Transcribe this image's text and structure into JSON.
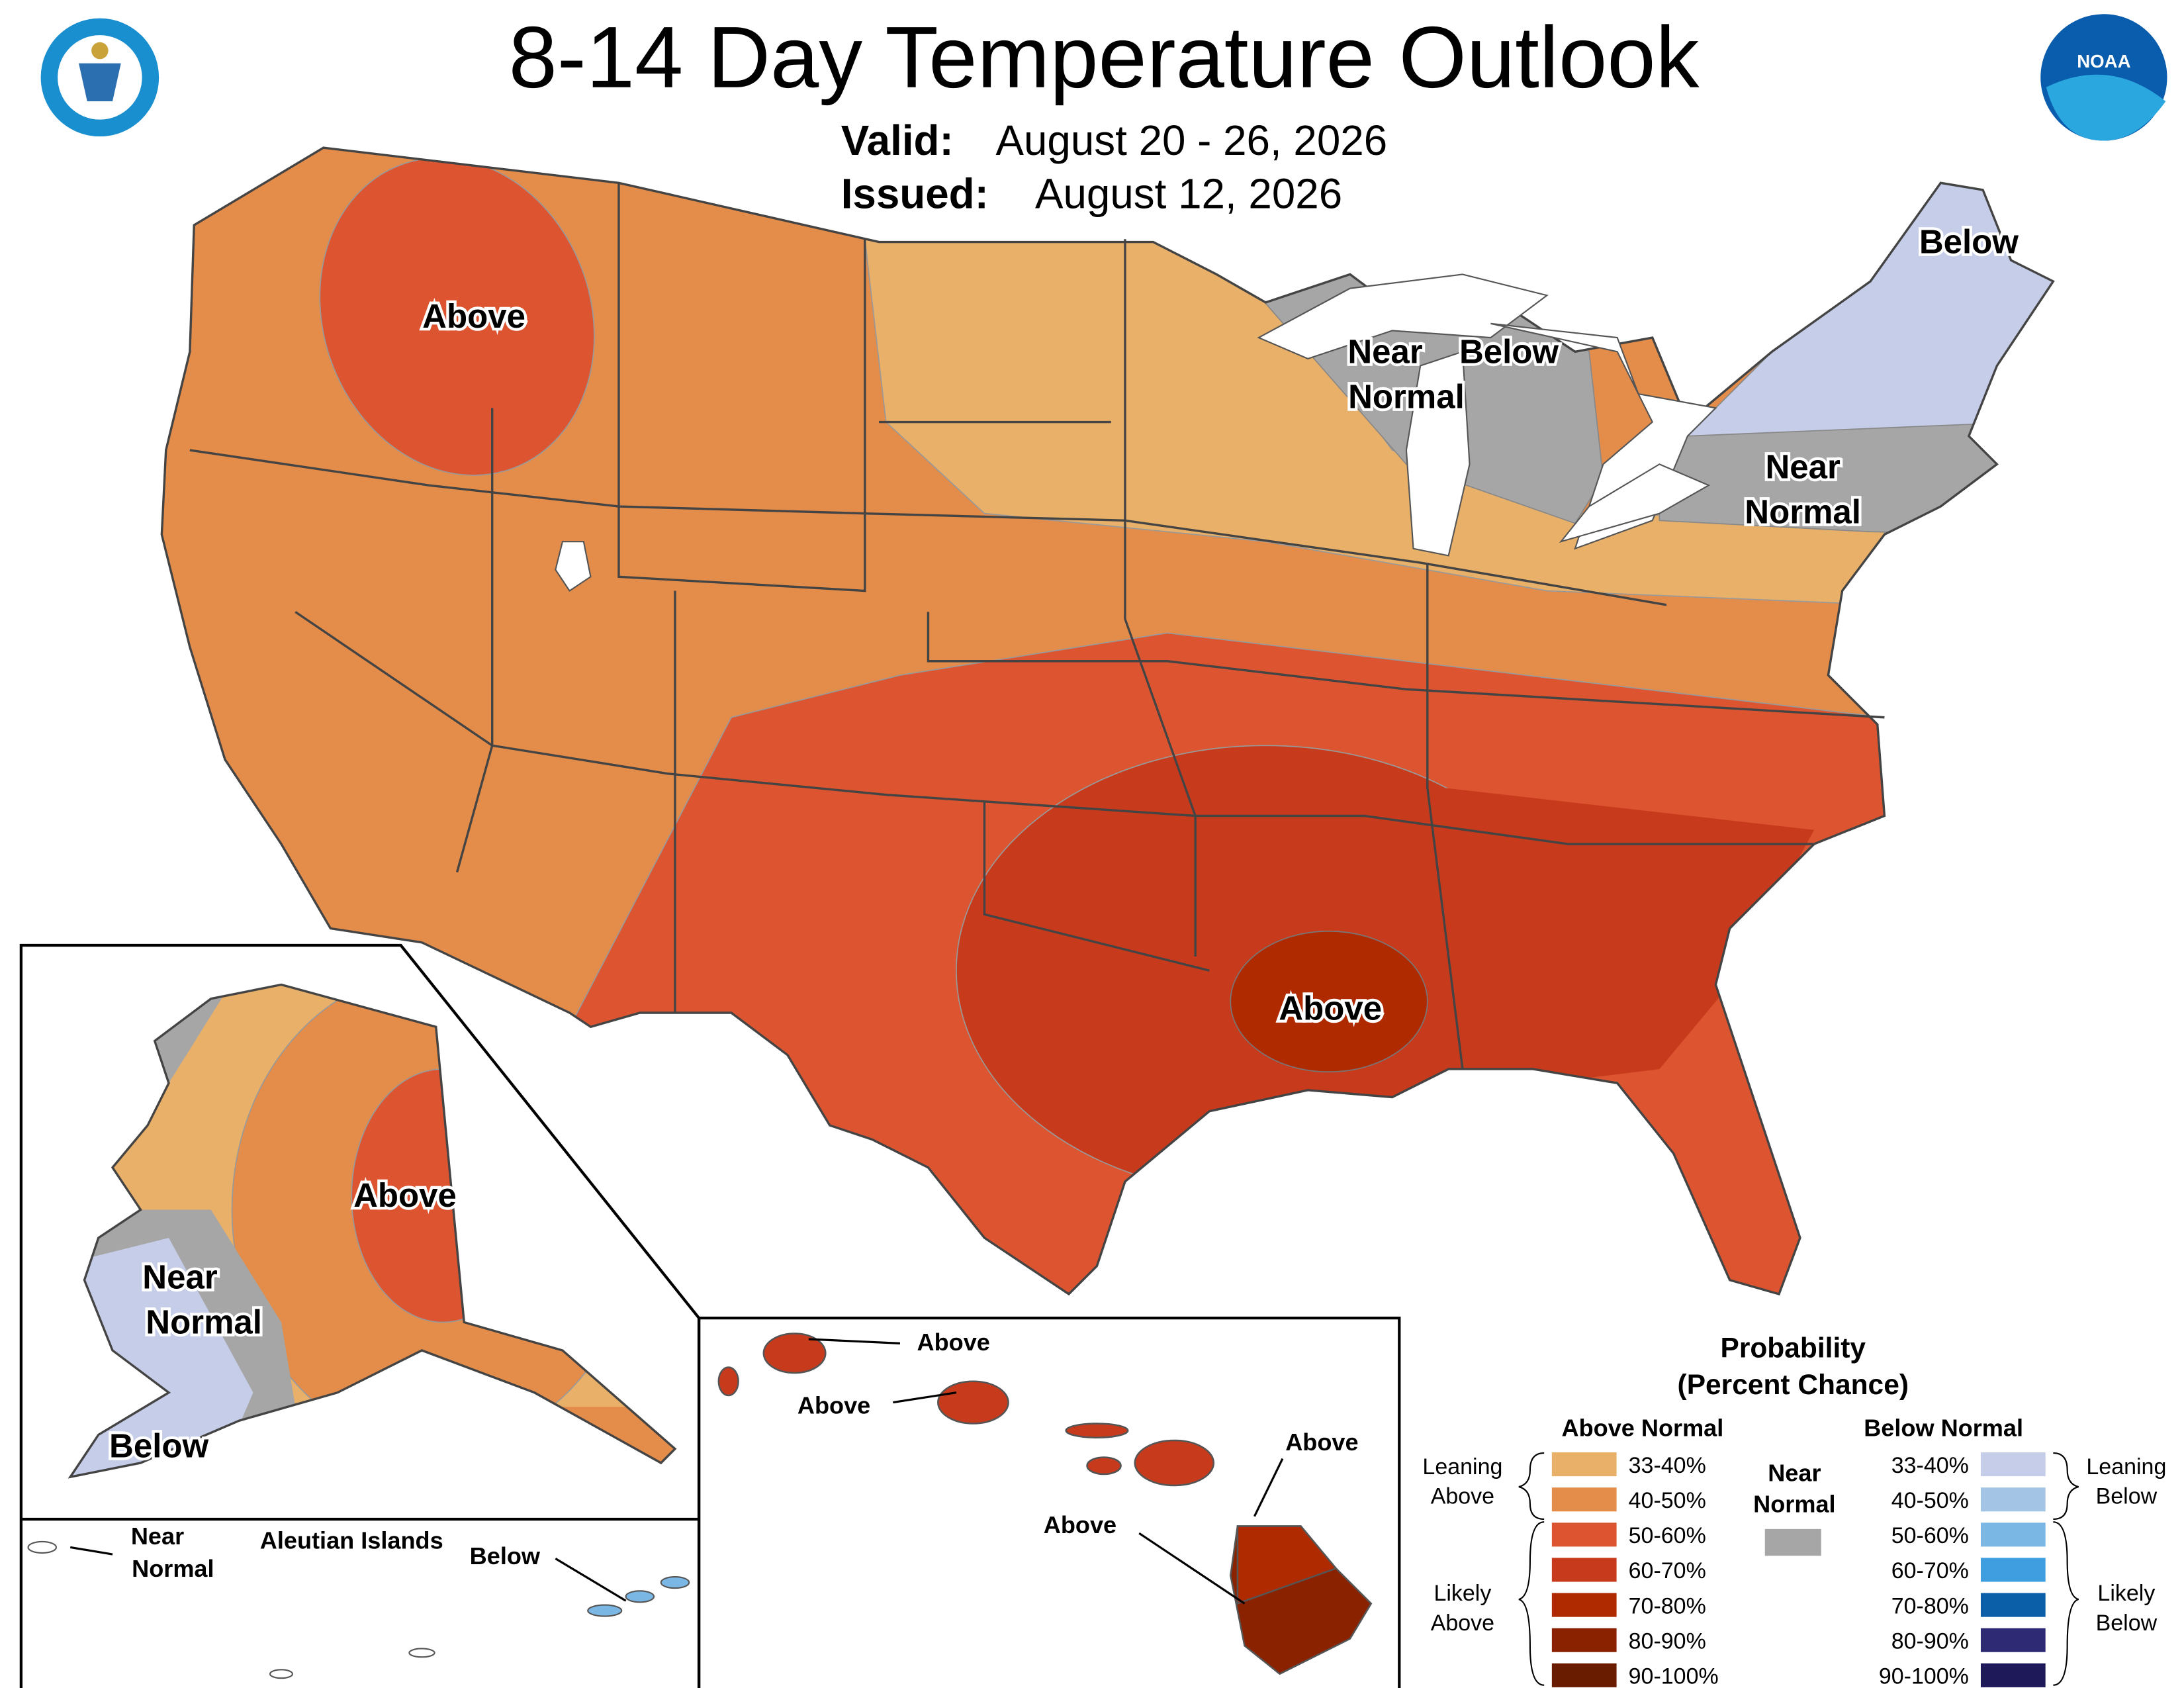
{
  "header": {
    "title": "8-14 Day Temperature Outlook",
    "valid_label": "Valid:",
    "valid": "August 20 - 26, 2026",
    "issued_label": "Issued:",
    "issued": "August 12, 2026",
    "noaa": "NOAA"
  },
  "conus_labels": {
    "northwest": "Above",
    "great_lakes_near": [
      "Near",
      "Normal"
    ],
    "great_lakes_below": "Below",
    "maine": "Below",
    "northeast": [
      "Near",
      "Normal"
    ],
    "south": "Above"
  },
  "alaska_labels": {
    "east": "Above",
    "west": [
      "Near",
      "Normal"
    ],
    "southwest": "Below"
  },
  "aleutian_labels": {
    "title": "Aleutian Islands",
    "west": [
      "Near",
      "Normal"
    ],
    "east": "Below"
  },
  "hawaii_labels": {
    "kauai": "Above",
    "oahu": "Above",
    "maui": "Above",
    "big_island": "Above"
  },
  "legend": {
    "title": "Probability",
    "subtitle": "(Percent Chance)",
    "above_header": "Above Normal",
    "below_header": "Below Normal",
    "near_header": [
      "Near",
      "Normal"
    ],
    "near_color": "#a6a6a6",
    "above_bins": [
      "33-40%",
      "40-50%",
      "50-60%",
      "60-70%",
      "70-80%",
      "80-90%",
      "90-100%"
    ],
    "above_colors": [
      "#e8b068",
      "#e48c4a",
      "#dc5530",
      "#c83a1c",
      "#b02a00",
      "#8a2200",
      "#6a1c00"
    ],
    "below_bins": [
      "33-40%",
      "40-50%",
      "50-60%",
      "60-70%",
      "70-80%",
      "80-90%",
      "90-100%"
    ],
    "below_colors": [
      "#c5cde8",
      "#a3c4e4",
      "#7ab7e5",
      "#3f9ee0",
      "#0b5ea8",
      "#2e2a74",
      "#1e1a5a"
    ],
    "leaning_above": [
      "Leaning",
      "Above"
    ],
    "likely_above": [
      "Likely",
      "Above"
    ],
    "leaning_below": [
      "Leaning",
      "Below"
    ],
    "likely_below": [
      "Likely",
      "Below"
    ]
  }
}
